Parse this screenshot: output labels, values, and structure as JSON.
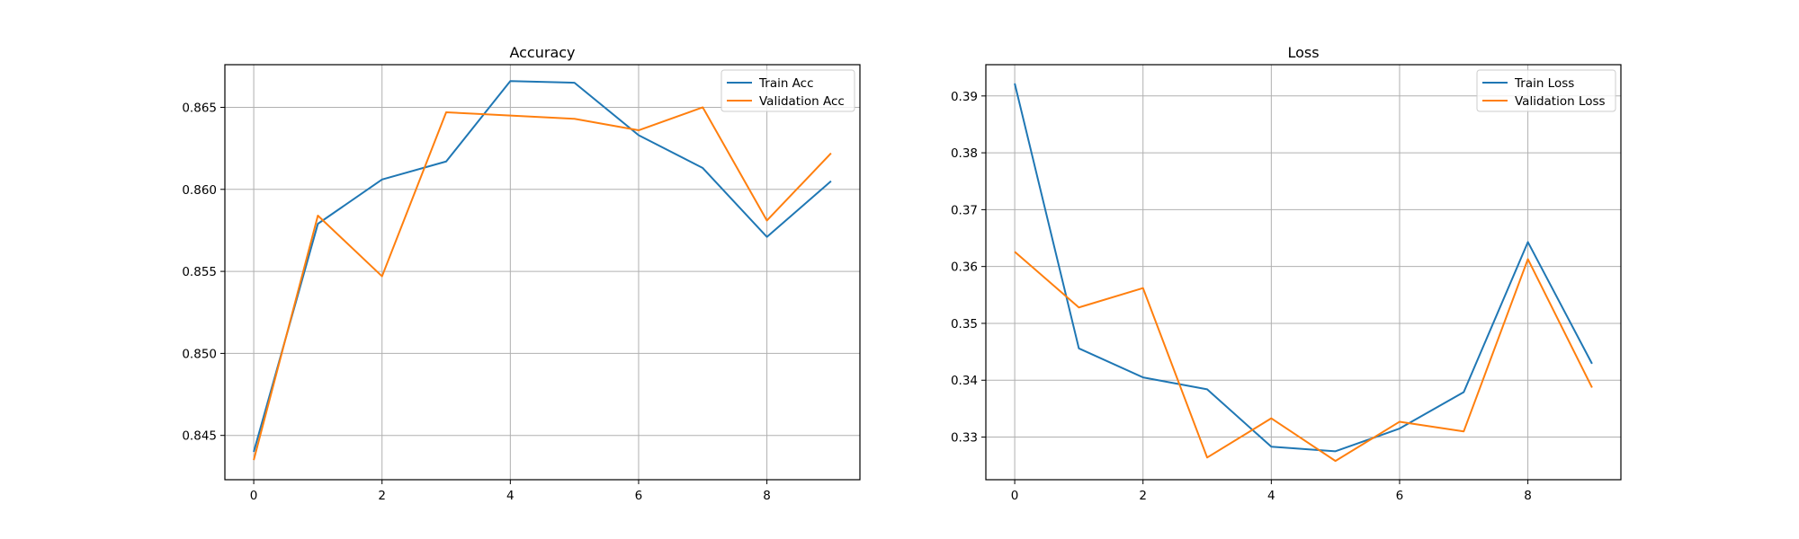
{
  "chart_data": [
    {
      "type": "line",
      "title": "Accuracy",
      "xlabel": "",
      "ylabel": "",
      "x": [
        0,
        1,
        2,
        3,
        4,
        5,
        6,
        7,
        8,
        9
      ],
      "xlim": [
        -0.45,
        9.45
      ],
      "ylim": [
        0.8423,
        0.8676
      ],
      "xticks": [
        0,
        2,
        4,
        6,
        8
      ],
      "yticks": [
        0.845,
        0.85,
        0.855,
        0.86,
        0.865
      ],
      "grid": true,
      "legend_position": "top-right",
      "series": [
        {
          "name": "Train Acc",
          "color": "#1f77b4",
          "values": [
            0.844,
            0.8579,
            0.8606,
            0.8617,
            0.8666,
            0.8665,
            0.8633,
            0.8613,
            0.8571,
            0.8605
          ]
        },
        {
          "name": "Validation Acc",
          "color": "#ff7f0e",
          "values": [
            0.8435,
            0.8584,
            0.8547,
            0.8647,
            0.8645,
            0.8643,
            0.8636,
            0.865,
            0.8581,
            0.8622
          ]
        }
      ]
    },
    {
      "type": "line",
      "title": "Loss",
      "xlabel": "",
      "ylabel": "",
      "x": [
        0,
        1,
        2,
        3,
        4,
        5,
        6,
        7,
        8,
        9
      ],
      "xlim": [
        -0.45,
        9.45
      ],
      "ylim": [
        0.3225,
        0.3955
      ],
      "xticks": [
        0,
        2,
        4,
        6,
        8
      ],
      "yticks": [
        0.33,
        0.34,
        0.35,
        0.36,
        0.37,
        0.38,
        0.39
      ],
      "grid": true,
      "legend_position": "top-right",
      "series": [
        {
          "name": "Train Loss",
          "color": "#1f77b4",
          "values": [
            0.3922,
            0.3456,
            0.3405,
            0.3384,
            0.3283,
            0.3275,
            0.3315,
            0.3379,
            0.3643,
            0.3429
          ]
        },
        {
          "name": "Validation Loss",
          "color": "#ff7f0e",
          "values": [
            0.3626,
            0.3528,
            0.3562,
            0.3264,
            0.3333,
            0.3258,
            0.3327,
            0.331,
            0.3613,
            0.3387
          ]
        }
      ]
    }
  ]
}
